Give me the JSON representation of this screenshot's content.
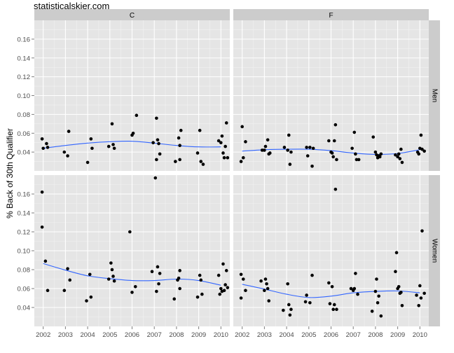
{
  "watermark": "statisticalskier.com",
  "chart_data": {
    "type": "scatter",
    "ylabel": "% Back of 30th Qualifier",
    "xlabel": "",
    "x_ticks": [
      "2002",
      "2003",
      "2004",
      "2005",
      "2006",
      "2007",
      "2008",
      "2009",
      "2010"
    ],
    "y_ticks": [
      "0.04",
      "0.06",
      "0.08",
      "0.10",
      "0.12",
      "0.14",
      "0.16"
    ],
    "xlim": [
      2001.6,
      2010.4
    ],
    "ylim": [
      0.02,
      0.18
    ],
    "grid": true,
    "colors": {
      "panel": "#E5E5E5",
      "strip": "#CCCCCC",
      "grid_major": "#FFFFFF",
      "grid_minor": "#F2F2F2",
      "point": "#000000",
      "smooth": "#3366FF"
    },
    "col_facets": [
      "C",
      "F"
    ],
    "row_facets": [
      "Men",
      "Women"
    ],
    "panels": [
      {
        "col": "C",
        "row": "Men",
        "points": [
          [
            2001.95,
            0.054
          ],
          [
            2002.0,
            0.044
          ],
          [
            2002.15,
            0.049
          ],
          [
            2002.2,
            0.045
          ],
          [
            2002.95,
            0.04
          ],
          [
            2003.1,
            0.036
          ],
          [
            2003.15,
            0.062
          ],
          [
            2004.0,
            0.029
          ],
          [
            2004.15,
            0.054
          ],
          [
            2004.2,
            0.044
          ],
          [
            2004.95,
            0.046
          ],
          [
            2005.1,
            0.07
          ],
          [
            2005.15,
            0.048
          ],
          [
            2005.2,
            0.044
          ],
          [
            2006.0,
            0.058
          ],
          [
            2006.05,
            0.06
          ],
          [
            2006.2,
            0.079
          ],
          [
            2006.95,
            0.05
          ],
          [
            2007.1,
            0.076
          ],
          [
            2007.1,
            0.032
          ],
          [
            2007.15,
            0.053
          ],
          [
            2007.2,
            0.049
          ],
          [
            2007.25,
            0.038
          ],
          [
            2007.95,
            0.03
          ],
          [
            2008.1,
            0.055
          ],
          [
            2008.15,
            0.032
          ],
          [
            2008.15,
            0.047
          ],
          [
            2008.2,
            0.063
          ],
          [
            2008.95,
            0.039
          ],
          [
            2009.05,
            0.063
          ],
          [
            2009.1,
            0.03
          ],
          [
            2009.2,
            0.027
          ],
          [
            2009.9,
            0.052
          ],
          [
            2010.0,
            0.05
          ],
          [
            2010.05,
            0.057
          ],
          [
            2010.1,
            0.039
          ],
          [
            2010.15,
            0.034
          ],
          [
            2010.2,
            0.046
          ],
          [
            2010.25,
            0.071
          ],
          [
            2010.3,
            0.034
          ]
        ],
        "smooth": [
          [
            2002,
            0.044
          ],
          [
            2003,
            0.047
          ],
          [
            2004,
            0.0495
          ],
          [
            2005,
            0.051
          ],
          [
            2006,
            0.0515
          ],
          [
            2007,
            0.0495
          ],
          [
            2008,
            0.047
          ],
          [
            2009,
            0.0455
          ],
          [
            2010,
            0.0455
          ]
        ]
      },
      {
        "col": "F",
        "row": "Men",
        "points": [
          [
            2001.95,
            0.03
          ],
          [
            2002.0,
            0.067
          ],
          [
            2002.05,
            0.034
          ],
          [
            2002.15,
            0.051
          ],
          [
            2002.9,
            0.042
          ],
          [
            2003.0,
            0.042
          ],
          [
            2003.05,
            0.046
          ],
          [
            2003.15,
            0.053
          ],
          [
            2003.2,
            0.038
          ],
          [
            2003.25,
            0.039
          ],
          [
            2003.9,
            0.045
          ],
          [
            2004.05,
            0.042
          ],
          [
            2004.1,
            0.058
          ],
          [
            2004.15,
            0.027
          ],
          [
            2004.2,
            0.04
          ],
          [
            2004.9,
            0.045
          ],
          [
            2004.95,
            0.036
          ],
          [
            2005.05,
            0.045
          ],
          [
            2005.15,
            0.025
          ],
          [
            2005.2,
            0.044
          ],
          [
            2005.9,
            0.052
          ],
          [
            2006.0,
            0.04
          ],
          [
            2006.05,
            0.039
          ],
          [
            2006.1,
            0.035
          ],
          [
            2006.15,
            0.052
          ],
          [
            2006.2,
            0.069
          ],
          [
            2006.25,
            0.032
          ],
          [
            2006.95,
            0.044
          ],
          [
            2007.05,
            0.061
          ],
          [
            2007.1,
            0.038
          ],
          [
            2007.15,
            0.032
          ],
          [
            2007.25,
            0.032
          ],
          [
            2007.9,
            0.056
          ],
          [
            2008.0,
            0.04
          ],
          [
            2008.05,
            0.037
          ],
          [
            2008.1,
            0.034
          ],
          [
            2008.15,
            0.036
          ],
          [
            2008.2,
            0.035
          ],
          [
            2008.25,
            0.038
          ],
          [
            2008.9,
            0.037
          ],
          [
            2009.0,
            0.035
          ],
          [
            2009.05,
            0.038
          ],
          [
            2009.1,
            0.033
          ],
          [
            2009.15,
            0.043
          ],
          [
            2009.2,
            0.029
          ],
          [
            2009.9,
            0.04
          ],
          [
            2009.95,
            0.038
          ],
          [
            2010.0,
            0.044
          ],
          [
            2010.05,
            0.058
          ],
          [
            2010.1,
            0.043
          ],
          [
            2010.2,
            0.041
          ]
        ],
        "smooth": [
          [
            2002,
            0.041
          ],
          [
            2003,
            0.0425
          ],
          [
            2004,
            0.043
          ],
          [
            2005,
            0.043
          ],
          [
            2006,
            0.0415
          ],
          [
            2007,
            0.039
          ],
          [
            2008,
            0.0375
          ],
          [
            2009,
            0.0385
          ],
          [
            2010,
            0.0425
          ]
        ]
      },
      {
        "col": "C",
        "row": "Women",
        "points": [
          [
            2001.95,
            0.162
          ],
          [
            2001.95,
            0.125
          ],
          [
            2002.1,
            0.089
          ],
          [
            2002.2,
            0.058
          ],
          [
            2002.95,
            0.058
          ],
          [
            2003.1,
            0.081
          ],
          [
            2003.2,
            0.069
          ],
          [
            2003.95,
            0.047
          ],
          [
            2004.1,
            0.075
          ],
          [
            2004.15,
            0.051
          ],
          [
            2004.95,
            0.07
          ],
          [
            2005.05,
            0.087
          ],
          [
            2005.1,
            0.08
          ],
          [
            2005.15,
            0.073
          ],
          [
            2005.2,
            0.068
          ],
          [
            2005.9,
            0.12
          ],
          [
            2006.0,
            0.056
          ],
          [
            2006.15,
            0.062
          ],
          [
            2006.9,
            0.078
          ],
          [
            2007.05,
            0.177
          ],
          [
            2007.1,
            0.057
          ],
          [
            2007.15,
            0.083
          ],
          [
            2007.2,
            0.065
          ],
          [
            2007.25,
            0.076
          ],
          [
            2007.9,
            0.049
          ],
          [
            2008.05,
            0.069
          ],
          [
            2008.1,
            0.071
          ],
          [
            2008.15,
            0.079
          ],
          [
            2008.15,
            0.06
          ],
          [
            2008.95,
            0.051
          ],
          [
            2009.05,
            0.074
          ],
          [
            2009.1,
            0.069
          ],
          [
            2009.15,
            0.054
          ],
          [
            2009.9,
            0.074
          ],
          [
            2009.95,
            0.054
          ],
          [
            2010.0,
            0.06
          ],
          [
            2010.05,
            0.057
          ],
          [
            2010.1,
            0.086
          ],
          [
            2010.15,
            0.058
          ],
          [
            2010.2,
            0.064
          ],
          [
            2010.25,
            0.079
          ],
          [
            2010.3,
            0.061
          ]
        ],
        "smooth": [
          [
            2002,
            0.0865
          ],
          [
            2003,
            0.0795
          ],
          [
            2004,
            0.0735
          ],
          [
            2005,
            0.0705
          ],
          [
            2006,
            0.0685
          ],
          [
            2007,
            0.0685
          ],
          [
            2008,
            0.07
          ],
          [
            2009,
            0.0685
          ],
          [
            2010,
            0.0635
          ]
        ]
      },
      {
        "col": "F",
        "row": "Women",
        "points": [
          [
            2001.95,
            0.05
          ],
          [
            2001.95,
            0.075
          ],
          [
            2002.05,
            0.07
          ],
          [
            2002.15,
            0.058
          ],
          [
            2002.85,
            0.068
          ],
          [
            2003.0,
            0.058
          ],
          [
            2003.05,
            0.07
          ],
          [
            2003.1,
            0.065
          ],
          [
            2003.15,
            0.06
          ],
          [
            2003.2,
            0.047
          ],
          [
            2003.85,
            0.037
          ],
          [
            2004.05,
            0.065
          ],
          [
            2004.1,
            0.043
          ],
          [
            2004.15,
            0.032
          ],
          [
            2004.2,
            0.038
          ],
          [
            2004.85,
            0.046
          ],
          [
            2004.9,
            0.053
          ],
          [
            2005.05,
            0.045
          ],
          [
            2005.15,
            0.074
          ],
          [
            2005.9,
            0.066
          ],
          [
            2005.95,
            0.044
          ],
          [
            2006.05,
            0.062
          ],
          [
            2006.1,
            0.038
          ],
          [
            2006.15,
            0.043
          ],
          [
            2006.2,
            0.165
          ],
          [
            2006.25,
            0.038
          ],
          [
            2006.9,
            0.06
          ],
          [
            2007.0,
            0.058
          ],
          [
            2007.05,
            0.06
          ],
          [
            2007.1,
            0.076
          ],
          [
            2007.2,
            0.054
          ],
          [
            2007.85,
            0.036
          ],
          [
            2008.0,
            0.057
          ],
          [
            2008.05,
            0.07
          ],
          [
            2008.1,
            0.045
          ],
          [
            2008.15,
            0.052
          ],
          [
            2008.25,
            0.031
          ],
          [
            2008.9,
            0.078
          ],
          [
            2008.95,
            0.098
          ],
          [
            2009.0,
            0.06
          ],
          [
            2009.05,
            0.062
          ],
          [
            2009.1,
            0.055
          ],
          [
            2009.15,
            0.056
          ],
          [
            2009.2,
            0.042
          ],
          [
            2009.85,
            0.053
          ],
          [
            2009.95,
            0.042
          ],
          [
            2010.0,
            0.063
          ],
          [
            2010.05,
            0.05
          ],
          [
            2010.1,
            0.121
          ],
          [
            2010.2,
            0.055
          ]
        ],
        "smooth": [
          [
            2002,
            0.0645
          ],
          [
            2003,
            0.0595
          ],
          [
            2004,
            0.054
          ],
          [
            2005,
            0.0505
          ],
          [
            2006,
            0.052
          ],
          [
            2007,
            0.0555
          ],
          [
            2008,
            0.057
          ],
          [
            2009,
            0.0575
          ],
          [
            2010,
            0.0555
          ]
        ]
      }
    ]
  }
}
